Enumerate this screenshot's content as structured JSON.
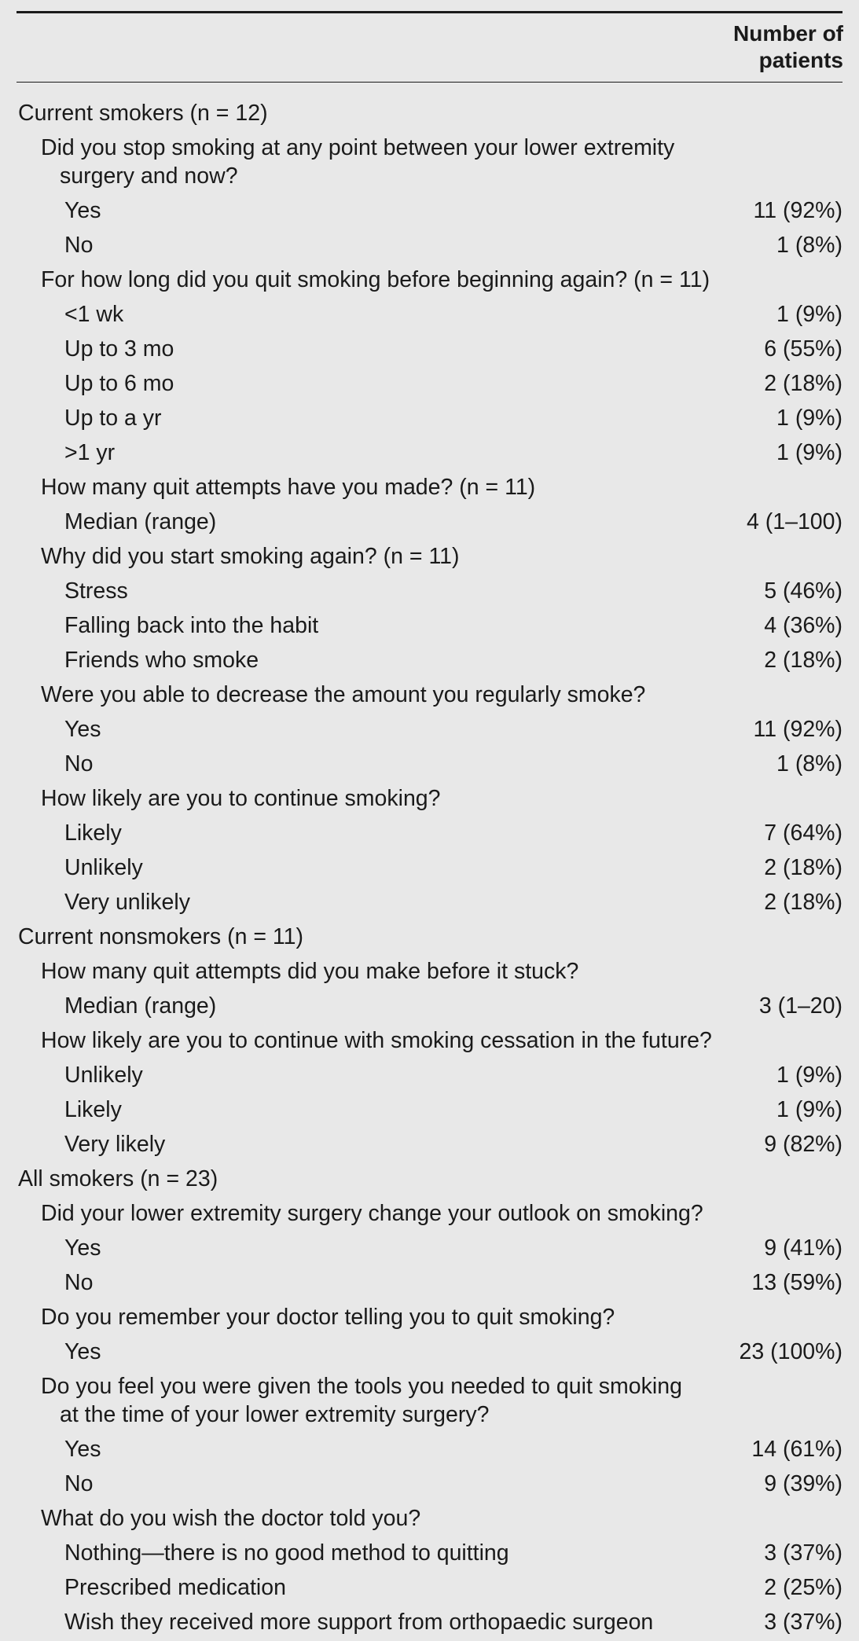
{
  "table": {
    "column_header_line1": "Number of",
    "column_header_line2": "patients",
    "rows": [
      {
        "level": 0,
        "label": "Current smokers (n = 12)",
        "value": ""
      },
      {
        "level": 1,
        "label": "Did you stop smoking at any point between your lower extremity",
        "label2": "surgery and now?",
        "value": ""
      },
      {
        "level": 2,
        "label": "Yes",
        "value": "11 (92%)"
      },
      {
        "level": 2,
        "label": "No",
        "value": "1 (8%)"
      },
      {
        "level": 1,
        "label": "For how long did you quit smoking before beginning again? (n = 11)",
        "value": ""
      },
      {
        "level": 2,
        "label": "<1 wk",
        "value": "1 (9%)"
      },
      {
        "level": 2,
        "label": "Up to 3 mo",
        "value": "6 (55%)"
      },
      {
        "level": 2,
        "label": "Up to 6 mo",
        "value": "2 (18%)"
      },
      {
        "level": 2,
        "label": "Up to a yr",
        "value": "1 (9%)"
      },
      {
        "level": 2,
        "label": ">1 yr",
        "value": "1 (9%)"
      },
      {
        "level": 1,
        "label": "How many quit attempts have you made? (n = 11)",
        "value": ""
      },
      {
        "level": 2,
        "label": "Median (range)",
        "value": "4 (1–100)"
      },
      {
        "level": 1,
        "label": "Why did you start smoking again? (n = 11)",
        "value": ""
      },
      {
        "level": 2,
        "label": "Stress",
        "value": "5 (46%)"
      },
      {
        "level": 2,
        "label": "Falling back into the habit",
        "value": "4 (36%)"
      },
      {
        "level": 2,
        "label": "Friends who smoke",
        "value": "2 (18%)"
      },
      {
        "level": 1,
        "label": "Were you able to decrease the amount you regularly smoke?",
        "value": ""
      },
      {
        "level": 2,
        "label": "Yes",
        "value": "11 (92%)"
      },
      {
        "level": 2,
        "label": "No",
        "value": "1 (8%)"
      },
      {
        "level": 1,
        "label": "How likely are you to continue smoking?",
        "value": ""
      },
      {
        "level": 2,
        "label": "Likely",
        "value": "7 (64%)"
      },
      {
        "level": 2,
        "label": "Unlikely",
        "value": "2 (18%)"
      },
      {
        "level": 2,
        "label": "Very unlikely",
        "value": "2 (18%)"
      },
      {
        "level": 0,
        "label": "Current nonsmokers (n = 11)",
        "value": ""
      },
      {
        "level": 1,
        "label": "How many quit attempts did you make before it stuck?",
        "value": ""
      },
      {
        "level": 2,
        "label": "Median (range)",
        "value": "3 (1–20)"
      },
      {
        "level": 1,
        "label": "How likely are you to continue with smoking cessation in the future?",
        "value": ""
      },
      {
        "level": 2,
        "label": "Unlikely",
        "value": "1 (9%)"
      },
      {
        "level": 2,
        "label": "Likely",
        "value": "1 (9%)"
      },
      {
        "level": 2,
        "label": "Very likely",
        "value": "9 (82%)"
      },
      {
        "level": 0,
        "label": "All smokers (n = 23)",
        "value": ""
      },
      {
        "level": 1,
        "label": "Did your lower extremity surgery change your outlook on smoking?",
        "value": ""
      },
      {
        "level": 2,
        "label": "Yes",
        "value": "9 (41%)"
      },
      {
        "level": 2,
        "label": "No",
        "value": "13 (59%)"
      },
      {
        "level": 1,
        "label": "Do you remember your doctor telling you to quit smoking?",
        "value": ""
      },
      {
        "level": 2,
        "label": "Yes",
        "value": "23 (100%)"
      },
      {
        "level": 1,
        "label": "Do you feel you were given the tools you needed to quit smoking",
        "label2": "at the time of your lower extremity surgery?",
        "value": ""
      },
      {
        "level": 2,
        "label": "Yes",
        "value": "14 (61%)"
      },
      {
        "level": 2,
        "label": "No",
        "value": "9 (39%)"
      },
      {
        "level": 1,
        "label": "What do you wish the doctor told you?",
        "value": ""
      },
      {
        "level": 2,
        "label": "Nothing—there is no good method to quitting",
        "value": "3 (37%)"
      },
      {
        "level": 2,
        "label": "Prescribed medication",
        "value": "2 (25%)"
      },
      {
        "level": 2,
        "label": "Wish they received more support from orthopaedic surgeon",
        "value": "3 (37%)"
      }
    ]
  }
}
